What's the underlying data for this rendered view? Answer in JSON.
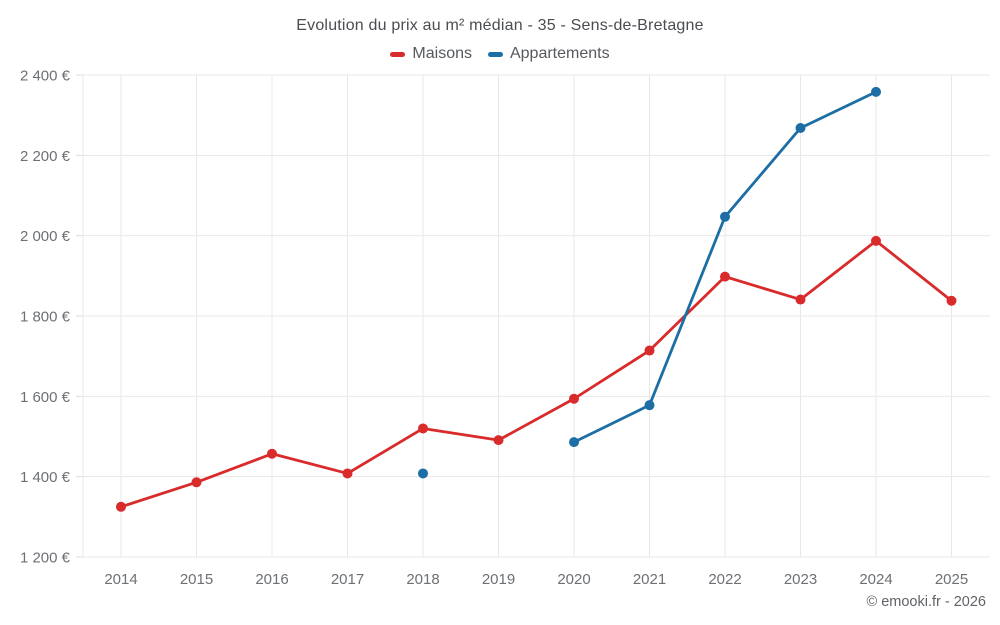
{
  "chart_data": {
    "type": "line",
    "title": "Evolution du prix au m² médian - 35 - Sens-de-Bretagne",
    "x": [
      2014,
      2015,
      2016,
      2017,
      2018,
      2019,
      2020,
      2021,
      2022,
      2023,
      2024,
      2025
    ],
    "ylim": [
      1200,
      2400
    ],
    "yticks": [
      1200,
      1400,
      1600,
      1800,
      2000,
      2200,
      2400
    ],
    "y_suffix": "€",
    "grid": true,
    "legend_position": "top",
    "series": [
      {
        "name": "Maisons",
        "color": "#d92b2b",
        "values": [
          1325,
          1386,
          1457,
          1408,
          1520,
          1491,
          1594,
          1714,
          1898,
          1841,
          1987,
          1838
        ]
      },
      {
        "name": "Appartements",
        "color": "#1c6ea4",
        "values": [
          null,
          null,
          null,
          null,
          1408,
          null,
          1486,
          1578,
          2047,
          2268,
          2358,
          null
        ]
      }
    ]
  },
  "footer": {
    "credit": "© emooki.fr - 2026"
  }
}
